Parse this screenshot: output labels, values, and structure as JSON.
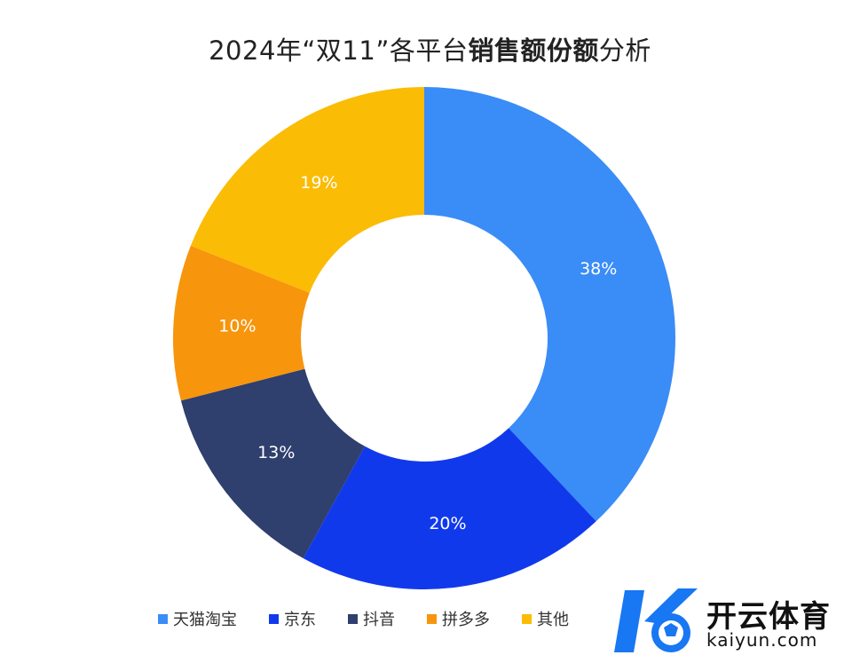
{
  "title": {
    "prefix": "2024年“双11”各平台",
    "bold": "销售额份额",
    "suffix": "分析"
  },
  "chart_data": {
    "type": "pie",
    "donut": true,
    "title": "2024年“双11”各平台销售额份额分析",
    "categories": [
      "天猫淘宝",
      "京东",
      "抖音",
      "拼多多",
      "其他"
    ],
    "values": [
      38,
      20,
      13,
      10,
      19
    ],
    "labels": [
      "38%",
      "20%",
      "13%",
      "10%",
      "19%"
    ],
    "colors": [
      "#3a8cf7",
      "#1139ec",
      "#2f3f6e",
      "#f7950c",
      "#fbbc05"
    ],
    "legend_position": "bottom"
  },
  "watermark": {
    "text": "开云体育",
    "url": "kaiyun.com"
  }
}
